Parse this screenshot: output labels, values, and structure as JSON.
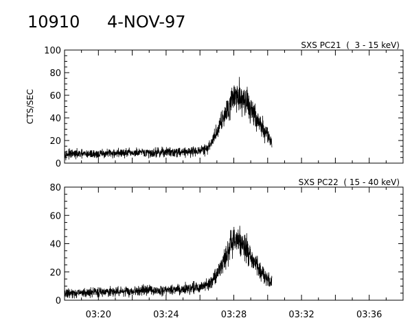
{
  "header": {
    "id": "10910",
    "date": "4-NOV-97"
  },
  "chart_data": [
    {
      "type": "line",
      "title": "SXS PC21  (  3 - 15 keV)",
      "xlabel": "",
      "ylabel": "CTS/SEC",
      "xlim": [
        "03:18:00",
        "03:38:00"
      ],
      "ylim": [
        0,
        100
      ],
      "y_ticks": [
        0,
        20,
        40,
        60,
        80,
        100
      ],
      "grid": false,
      "series": [
        {
          "x": [
            "03:18",
            "03:19",
            "03:20",
            "03:21",
            "03:22",
            "03:23",
            "03:24",
            "03:25",
            "03:26",
            "03:26:30",
            "03:27",
            "03:27:30",
            "03:28",
            "03:28:30",
            "03:29",
            "03:29:30",
            "03:30",
            "03:30:15"
          ],
          "y": [
            8,
            8,
            8,
            9,
            9,
            9,
            10,
            10,
            11,
            13,
            28,
            45,
            60,
            58,
            48,
            35,
            25,
            18
          ]
        }
      ]
    },
    {
      "type": "line",
      "title": "SXS PC22  ( 15 - 40 keV)",
      "xlabel": "",
      "ylabel": "",
      "xlim": [
        "03:18:00",
        "03:38:00"
      ],
      "ylim": [
        0,
        80
      ],
      "y_ticks": [
        0,
        20,
        40,
        60,
        80
      ],
      "x_ticks": [
        "03:20",
        "03:24",
        "03:28",
        "03:32",
        "03:36"
      ],
      "grid": false,
      "series": [
        {
          "x": [
            "03:18",
            "03:19",
            "03:20",
            "03:21",
            "03:22",
            "03:23",
            "03:24",
            "03:25",
            "03:26",
            "03:26:30",
            "03:27",
            "03:27:30",
            "03:28",
            "03:28:30",
            "03:29",
            "03:29:30",
            "03:30",
            "03:30:15"
          ],
          "y": [
            5,
            5,
            6,
            6,
            6,
            7,
            7,
            8,
            9,
            11,
            18,
            30,
            45,
            40,
            30,
            22,
            15,
            12
          ]
        }
      ]
    }
  ]
}
